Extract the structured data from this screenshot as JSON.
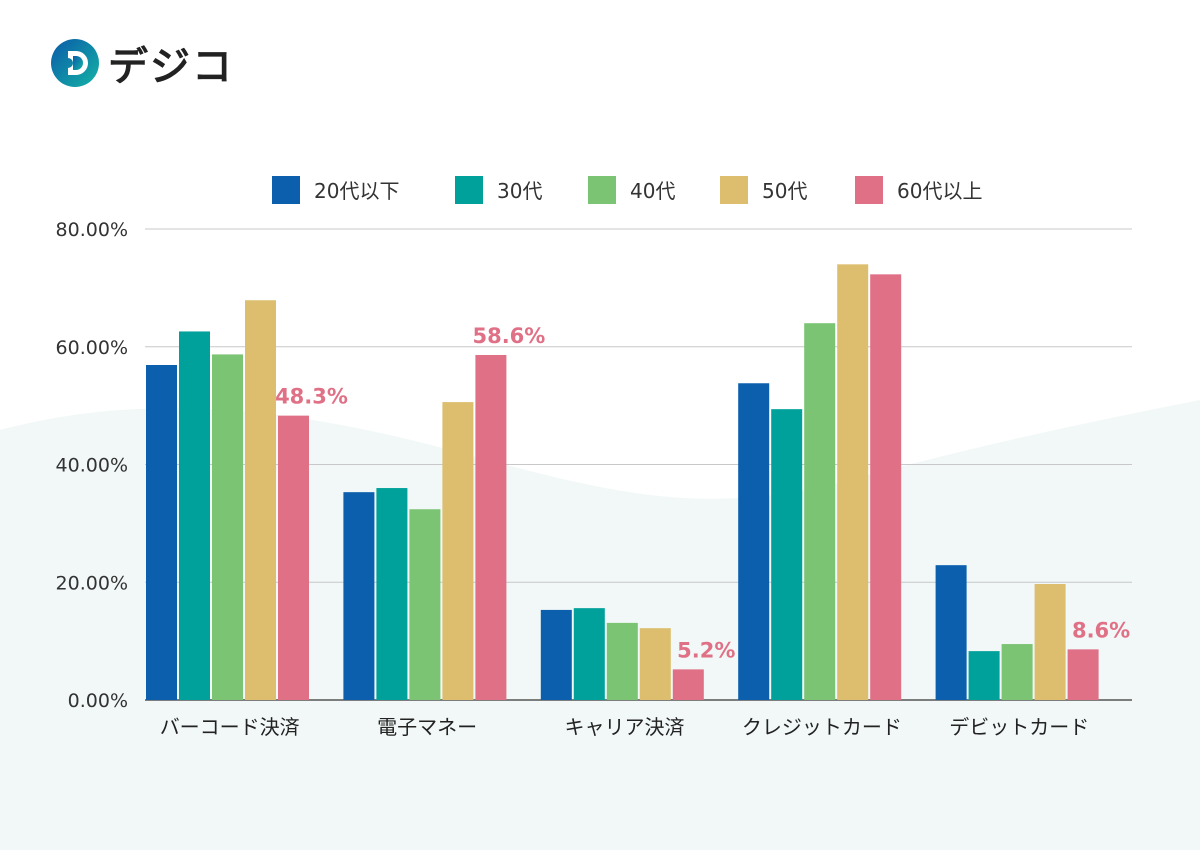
{
  "logo": {
    "text": "デジコ"
  },
  "chart_data": {
    "type": "bar",
    "title": "",
    "xlabel": "",
    "ylabel": "",
    "ylim": [
      0,
      80
    ],
    "yticks": [
      "0.00%",
      "20.00%",
      "40.00%",
      "60.00%",
      "80.00%"
    ],
    "grid": true,
    "legend_position": "top",
    "categories": [
      "バーコード決済",
      "電子マネー",
      "キャリア決済",
      "クレジットカード",
      "デビットカード"
    ],
    "series": [
      {
        "name": "20代以下",
        "color": "#0b5fad",
        "values": [
          56.9,
          35.3,
          15.3,
          53.8,
          22.9
        ]
      },
      {
        "name": "30代",
        "color": "#00a19a",
        "values": [
          62.6,
          36.0,
          15.6,
          49.4,
          8.3
        ]
      },
      {
        "name": "40代",
        "color": "#7bc473",
        "values": [
          58.7,
          32.4,
          13.1,
          64.0,
          9.5
        ]
      },
      {
        "name": "50代",
        "color": "#dcbe6e",
        "values": [
          67.9,
          50.6,
          12.2,
          74.0,
          19.7
        ]
      },
      {
        "name": "60代以上",
        "color": "#e07086",
        "values": [
          48.3,
          58.6,
          5.2,
          72.3,
          8.6
        ]
      }
    ],
    "data_labels": [
      {
        "series": 4,
        "category": 0,
        "text": "48.3%"
      },
      {
        "series": 4,
        "category": 1,
        "text": "58.6%"
      },
      {
        "series": 4,
        "category": 2,
        "text": "5.2%"
      },
      {
        "series": 4,
        "category": 4,
        "text": "8.6%"
      }
    ]
  }
}
